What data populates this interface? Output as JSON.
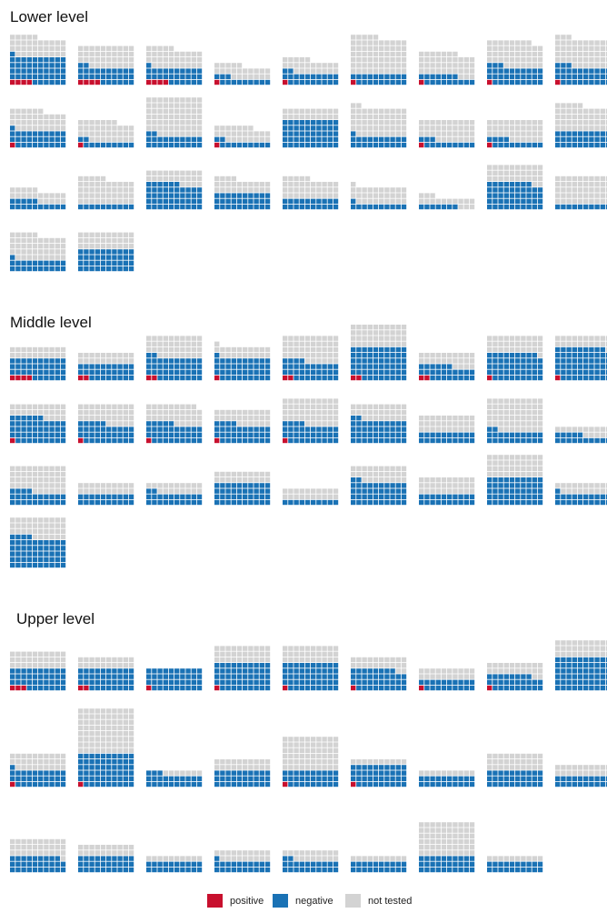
{
  "chart_data": {
    "type": "waffle",
    "series": [
      {
        "name": "positive",
        "color": "#c8102e"
      },
      {
        "name": "negative",
        "color": "#1a72b5"
      },
      {
        "name": "not tested",
        "color": "#d3d3d3"
      }
    ],
    "panels": [
      {
        "title": "Lower level",
        "values": [
          [
            4,
            47,
            34
          ],
          [
            4,
            28,
            38
          ],
          [
            4,
            27,
            34
          ],
          [
            1,
            12,
            22
          ],
          [
            1,
            21,
            23
          ],
          [
            1,
            19,
            65
          ],
          [
            1,
            16,
            40
          ],
          [
            1,
            32,
            45
          ],
          [
            1,
            32,
            50
          ],
          [
            1,
            30,
            35
          ],
          [
            1,
            11,
            35
          ],
          [
            0,
            22,
            68
          ],
          [
            1,
            11,
            25
          ],
          [
            0,
            50,
            20
          ],
          [
            0,
            21,
            51
          ],
          [
            1,
            12,
            37
          ],
          [
            1,
            13,
            36
          ],
          [
            0,
            30,
            45
          ],
          [
            0,
            15,
            20
          ],
          [
            0,
            10,
            45
          ],
          [
            0,
            46,
            24
          ],
          [
            0,
            30,
            24
          ],
          [
            0,
            20,
            35
          ],
          [
            0,
            11,
            30
          ],
          [
            0,
            7,
            16
          ],
          [
            0,
            48,
            32
          ],
          [
            0,
            10,
            50
          ],
          [
            0,
            21,
            44
          ],
          [
            0,
            40,
            30
          ]
        ]
      },
      {
        "title": "Middle level",
        "values": [
          [
            4,
            36,
            20
          ],
          [
            2,
            28,
            20
          ],
          [
            2,
            40,
            38
          ],
          [
            1,
            40,
            20
          ],
          [
            2,
            32,
            46
          ],
          [
            2,
            58,
            40
          ],
          [
            2,
            24,
            24
          ],
          [
            1,
            48,
            31
          ],
          [
            1,
            58,
            21
          ],
          [
            1,
            45,
            24
          ],
          [
            1,
            34,
            35
          ],
          [
            1,
            34,
            34
          ],
          [
            1,
            33,
            26
          ],
          [
            1,
            33,
            46
          ],
          [
            0,
            42,
            28
          ],
          [
            0,
            20,
            30
          ],
          [
            0,
            22,
            58
          ],
          [
            0,
            15,
            15
          ],
          [
            0,
            24,
            46
          ],
          [
            0,
            20,
            20
          ],
          [
            0,
            22,
            18
          ],
          [
            0,
            40,
            20
          ],
          [
            0,
            10,
            20
          ],
          [
            0,
            42,
            28
          ],
          [
            0,
            20,
            30
          ],
          [
            0,
            50,
            40
          ],
          [
            0,
            21,
            19
          ],
          [
            0,
            54,
            36
          ]
        ]
      },
      {
        "title": "Upper level",
        "values": [
          [
            3,
            37,
            30
          ],
          [
            2,
            38,
            20
          ],
          [
            1,
            39,
            0
          ],
          [
            1,
            49,
            30
          ],
          [
            1,
            49,
            30
          ],
          [
            1,
            37,
            22
          ],
          [
            1,
            19,
            20
          ],
          [
            1,
            27,
            22
          ],
          [
            0,
            60,
            30
          ],
          [
            1,
            30,
            29
          ],
          [
            1,
            59,
            80
          ],
          [
            0,
            23,
            7
          ],
          [
            0,
            30,
            20
          ],
          [
            1,
            29,
            60
          ],
          [
            1,
            39,
            10
          ],
          [
            0,
            20,
            10
          ],
          [
            0,
            30,
            30
          ],
          [
            0,
            20,
            20
          ],
          [
            0,
            29,
            31
          ],
          [
            0,
            30,
            20
          ],
          [
            0,
            20,
            10
          ],
          [
            0,
            21,
            19
          ],
          [
            0,
            22,
            18
          ],
          [
            0,
            20,
            10
          ],
          [
            0,
            30,
            60
          ],
          [
            0,
            20,
            10
          ]
        ]
      }
    ]
  }
}
